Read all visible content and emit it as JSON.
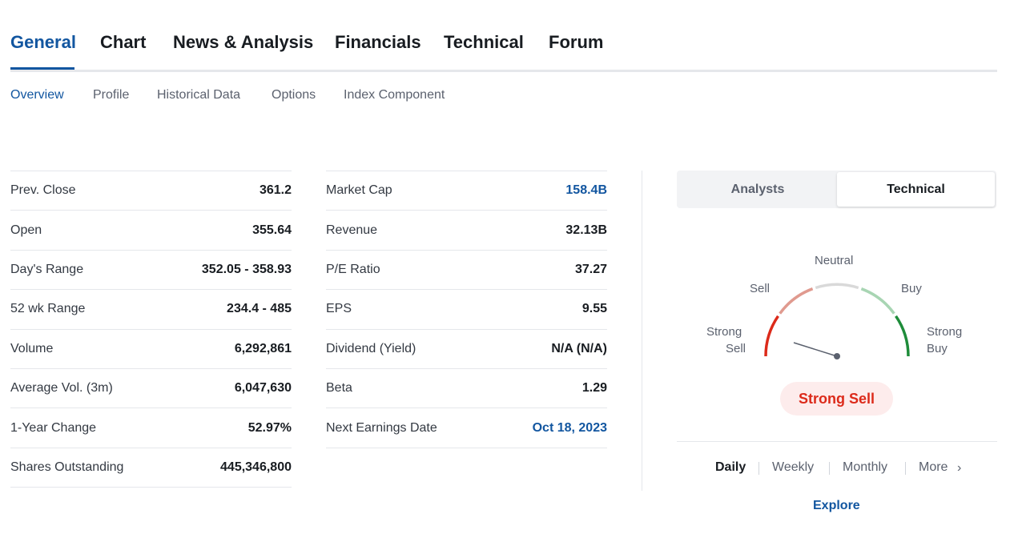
{
  "main_tabs": [
    "General",
    "Chart",
    "News & Analysis",
    "Financials",
    "Technical",
    "Forum"
  ],
  "sub_tabs": [
    "Overview",
    "Profile",
    "Historical Data",
    "Options",
    "Index Component"
  ],
  "left_stats": [
    {
      "label": "Prev. Close",
      "value": "361.2"
    },
    {
      "label": "Open",
      "value": "355.64"
    },
    {
      "label": "Day's Range",
      "value": "352.05 - 358.93"
    },
    {
      "label": "52 wk Range",
      "value": "234.4 - 485"
    },
    {
      "label": "Volume",
      "value": "6,292,861"
    },
    {
      "label": "Average Vol. (3m)",
      "value": "6,047,630"
    },
    {
      "label": "1-Year Change",
      "value": "52.97%"
    },
    {
      "label": "Shares Outstanding",
      "value": "445,346,800"
    }
  ],
  "right_stats": [
    {
      "label": "Market Cap",
      "value": "158.4B"
    },
    {
      "label": "Revenue",
      "value": "32.13B"
    },
    {
      "label": "P/E Ratio",
      "value": "37.27"
    },
    {
      "label": "EPS",
      "value": "9.55"
    },
    {
      "label": "Dividend (Yield)",
      "value": "N/A (N/A)"
    },
    {
      "label": "Beta",
      "value": "1.29"
    },
    {
      "label": "Next Earnings Date",
      "value": "Oct 18, 2023"
    }
  ],
  "toggle": {
    "analysts": "Analysts",
    "technical": "Technical"
  },
  "gauge": {
    "labels": {
      "neutral": "Neutral",
      "sell": "Sell",
      "buy": "Buy",
      "strong_sell_line1": "Strong",
      "strong_sell_line2": "Sell",
      "strong_buy_line1": "Strong",
      "strong_buy_line2": "Buy"
    },
    "result": "Strong Sell"
  },
  "periods": {
    "daily": "Daily",
    "weekly": "Weekly",
    "monthly": "Monthly",
    "more": "More"
  },
  "explore": "Explore",
  "colors": {
    "accent": "#1256a0",
    "strong_sell": "#dc2a1a",
    "sell": "#e09a8f",
    "neutral": "#d9d9d9",
    "buy": "#a8d5b3",
    "strong_buy": "#1e8c3a"
  }
}
